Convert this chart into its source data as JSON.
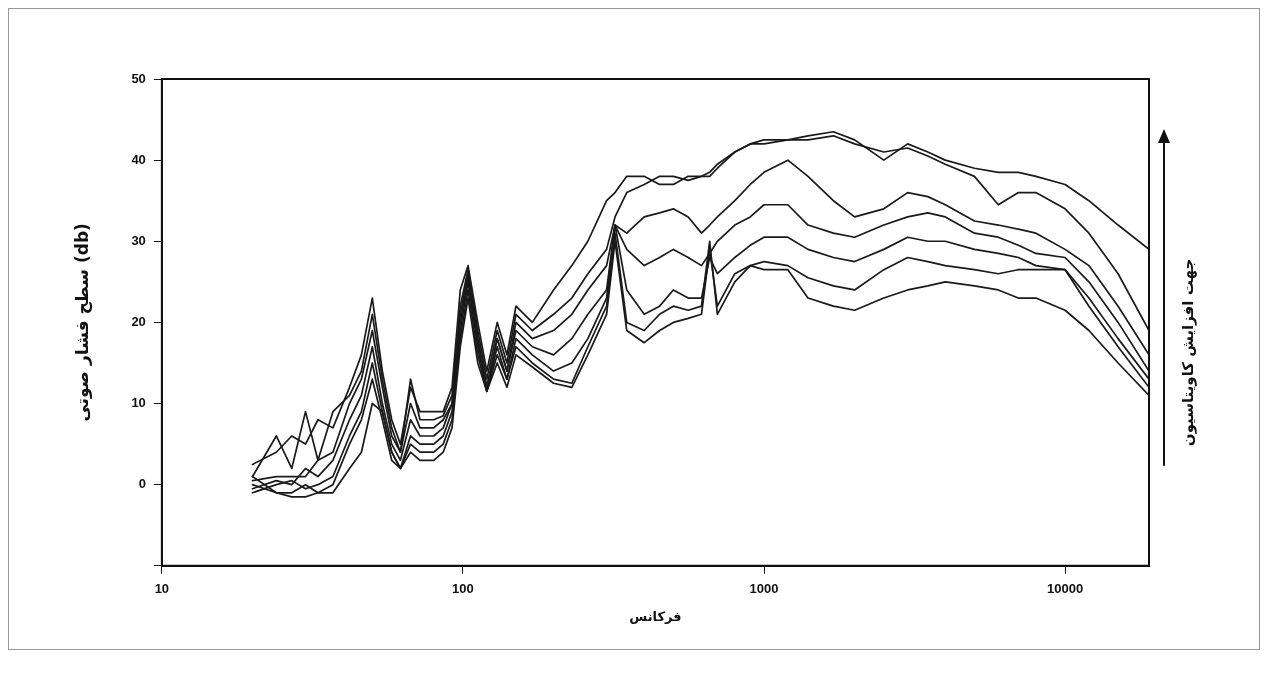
{
  "chart_data": {
    "type": "line",
    "xlabel": "فرکانس",
    "ylabel": "سطح فشار صوتی (db)",
    "annotations": [
      "جهت افزایش کاویتاسیون"
    ],
    "log": "x",
    "xlim": [
      10,
      19000
    ],
    "xticks": [
      10,
      100,
      1000,
      10000
    ],
    "ylim": [
      -10,
      50
    ],
    "yticks": [
      {
        "value": -10,
        "label": null
      },
      0,
      10,
      20,
      30,
      40,
      50
    ],
    "marker": "none",
    "line_style": "solid",
    "x": [
      20,
      24,
      27,
      30,
      33,
      37,
      42,
      46,
      50,
      54,
      58,
      62,
      67,
      72,
      80,
      86,
      92,
      98,
      104,
      112,
      120,
      130,
      140,
      150,
      170,
      200,
      230,
      260,
      300,
      320,
      350,
      400,
      450,
      500,
      560,
      620,
      660,
      700,
      800,
      900,
      1000,
      1200,
      1400,
      1700,
      2000,
      2500,
      3000,
      3500,
      4000,
      5000,
      6000,
      7000,
      8000,
      10000,
      12000,
      15000,
      19000
    ],
    "series": [
      {
        "color": "#1a1a1a",
        "values": [
          2.5,
          4,
          6,
          5,
          8,
          7,
          12,
          16,
          23,
          14,
          8,
          5,
          12,
          9,
          9,
          9,
          12,
          24,
          27,
          20,
          14,
          20,
          16,
          22,
          20,
          24,
          27,
          30,
          35,
          36,
          38,
          38,
          37,
          37,
          38,
          38,
          38,
          39,
          41,
          42,
          42.5,
          42.5,
          43,
          43.5,
          42.5,
          40,
          42,
          41,
          40,
          39,
          38.5,
          38.5,
          38,
          37,
          35,
          32,
          29
        ]
      },
      {
        "color": "#1a1a1a",
        "values": [
          1,
          6,
          2,
          9,
          3,
          9,
          11,
          14,
          21,
          13,
          7,
          4,
          13,
          8,
          8,
          8.5,
          11,
          22,
          26.5,
          19,
          13,
          19,
          15,
          21,
          19,
          21,
          23,
          26,
          29,
          33,
          36,
          37,
          38,
          38,
          37.5,
          38,
          38.5,
          39.5,
          41,
          42,
          42,
          42.5,
          42.5,
          43,
          42,
          41,
          41.5,
          40.5,
          39.5,
          38,
          34.5,
          36,
          36,
          34,
          31,
          26,
          19
        ]
      },
      {
        "color": "#1a1a1a",
        "values": [
          0.5,
          1,
          1,
          1,
          3,
          4,
          10,
          13,
          19,
          12,
          6,
          4,
          10,
          7,
          7,
          8,
          10,
          21,
          26,
          18,
          12,
          18,
          14,
          20,
          18,
          19,
          21,
          24,
          27,
          32,
          31,
          33,
          33.5,
          34,
          33,
          31,
          32,
          33,
          35,
          37,
          38.5,
          40,
          38,
          35,
          33,
          34,
          36,
          35.5,
          34.5,
          32.5,
          32,
          31.5,
          31,
          29,
          27,
          22,
          16
        ]
      },
      {
        "color": "#1a1a1a",
        "values": [
          -0.5,
          0.5,
          0,
          2,
          1,
          3,
          8,
          11,
          17,
          10,
          5,
          3,
          8,
          6,
          6,
          7,
          10,
          20,
          25.5,
          18,
          12,
          18,
          14,
          19,
          17,
          16,
          18,
          21,
          24,
          32,
          29,
          27,
          28,
          29,
          28,
          27,
          28.5,
          30,
          32,
          33,
          34.5,
          34.5,
          32,
          31,
          30.5,
          32,
          33,
          33.5,
          33,
          31,
          30.5,
          29.5,
          28.5,
          28,
          25,
          20,
          14
        ]
      },
      {
        "color": "#1a1a1a",
        "values": [
          -1,
          0,
          0.5,
          -0.5,
          0,
          1,
          6,
          9,
          15,
          9,
          4,
          2,
          6,
          5,
          5,
          6,
          9,
          19,
          25,
          17,
          11.5,
          17,
          13,
          18,
          16,
          14,
          15,
          18,
          23,
          32,
          24,
          21,
          22,
          24,
          23,
          23,
          28,
          26,
          28,
          29.5,
          30.5,
          30.5,
          29,
          28,
          27.5,
          29,
          30.5,
          30,
          30,
          29,
          28.5,
          28,
          27,
          26.5,
          23,
          18,
          13
        ]
      },
      {
        "color": "#1a1a1a",
        "values": [
          0,
          -1,
          -1,
          0,
          -1,
          0,
          5,
          8,
          13,
          8,
          3,
          2,
          5,
          4,
          4,
          5,
          8,
          18,
          24,
          16,
          11.5,
          16,
          13,
          17,
          15,
          13,
          12.5,
          17,
          22,
          31,
          20,
          19,
          21,
          22,
          21.5,
          22,
          30,
          21,
          25,
          27,
          27.5,
          27,
          25.5,
          24.5,
          24,
          26.5,
          28,
          27.5,
          27,
          26.5,
          26,
          26.5,
          26.5,
          26.5,
          22,
          17,
          12
        ]
      },
      {
        "color": "#1a1a1a",
        "values": [
          1,
          -1,
          -1.5,
          -1.5,
          -1,
          -1,
          2,
          4,
          10,
          9,
          4,
          2,
          4,
          3,
          3,
          4,
          7,
          17,
          23,
          15,
          11.5,
          15,
          12,
          16,
          14.5,
          12.5,
          12,
          16,
          21,
          30,
          19,
          17.5,
          19,
          20,
          20.5,
          21,
          29,
          22,
          26,
          27,
          26.5,
          26.5,
          23,
          22,
          21.5,
          23,
          24,
          24.5,
          25,
          24.5,
          24,
          23,
          23,
          21.5,
          19,
          15,
          11
        ]
      }
    ]
  }
}
